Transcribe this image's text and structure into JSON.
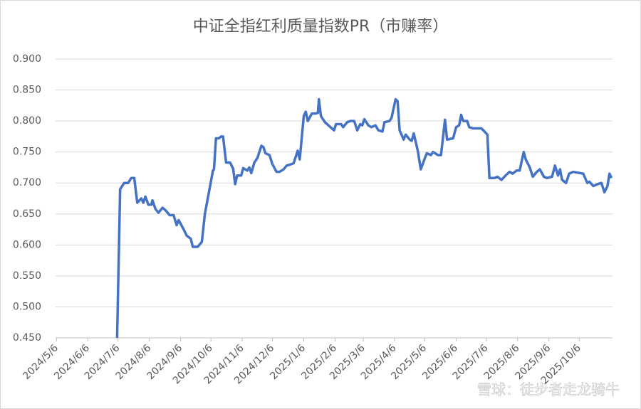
{
  "chart_data": {
    "type": "line",
    "title": "中证全指红利质量指数PR（市赚率）",
    "annotation": "雪球：徒步者走龙骑牛",
    "x": [
      "2024/7/5",
      "2024/7/8",
      "2024/7/12",
      "2024/7/16",
      "2024/7/19",
      "2024/7/22",
      "2024/7/25",
      "2024/7/29",
      "2024/7/31",
      "2024/8/2",
      "2024/8/5",
      "2024/8/8",
      "2024/8/9",
      "2024/8/12",
      "2024/8/15",
      "2024/8/19",
      "2024/8/22",
      "2024/8/26",
      "2024/8/30",
      "2024/9/2",
      "2024/9/4",
      "2024/9/9",
      "2024/9/12",
      "2024/9/16",
      "2024/9/18",
      "2024/9/23",
      "2024/9/27",
      "2024/9/30",
      "2024/10/8",
      "2024/10/9",
      "2024/10/11",
      "2024/10/14",
      "2024/10/16",
      "2024/10/18",
      "2024/10/21",
      "2024/10/25",
      "2024/10/28",
      "2024/10/30",
      "2024/11/1",
      "2024/11/5",
      "2024/11/7",
      "2024/11/11",
      "2024/11/13",
      "2024/11/15",
      "2024/11/18",
      "2024/11/21",
      "2024/11/25",
      "2024/11/27",
      "2024/11/29",
      "2024/12/3",
      "2024/12/6",
      "2024/12/10",
      "2024/12/13",
      "2024/12/17",
      "2024/12/20",
      "2024/12/24",
      "2024/12/27",
      "2024/12/31",
      "2025/1/2",
      "2025/1/6",
      "2025/1/8",
      "2025/1/10",
      "2025/1/14",
      "2025/1/17",
      "2025/1/20",
      "2025/1/21",
      "2025/1/23",
      "2025/1/27",
      "2025/2/5",
      "2025/2/7",
      "2025/2/12",
      "2025/2/14",
      "2025/2/18",
      "2025/2/21",
      "2025/2/25",
      "2025/2/28",
      "2025/3/3",
      "2025/3/5",
      "2025/3/7",
      "2025/3/11",
      "2025/3/14",
      "2025/3/18",
      "2025/3/21",
      "2025/3/25",
      "2025/3/27",
      "2025/4/1",
      "2025/4/3",
      "2025/4/7",
      "2025/4/9",
      "2025/4/11",
      "2025/4/15",
      "2025/4/17",
      "2025/4/21",
      "2025/4/23",
      "2025/4/25",
      "2025/4/29",
      "2025/5/2",
      "2025/5/6",
      "2025/5/8",
      "2025/5/12",
      "2025/5/14",
      "2025/5/19",
      "2025/5/22",
      "2025/5/26",
      "2025/5/28",
      "2025/6/3",
      "2025/6/6",
      "2025/6/9",
      "2025/6/11",
      "2025/6/13",
      "2025/6/17",
      "2025/6/19",
      "2025/6/23",
      "2025/6/27",
      "2025/7/1",
      "2025/7/3",
      "2025/7/7",
      "2025/7/9",
      "2025/7/14",
      "2025/7/17",
      "2025/7/21",
      "2025/7/25",
      "2025/7/29",
      "2025/8/1",
      "2025/8/5",
      "2025/8/8",
      "2025/8/12",
      "2025/8/14",
      "2025/8/18",
      "2025/8/21",
      "2025/8/25",
      "2025/8/28",
      "2025/9/1",
      "2025/9/4",
      "2025/9/9",
      "2025/9/12",
      "2025/9/15",
      "2025/9/17",
      "2025/9/19",
      "2025/9/23",
      "2025/9/26",
      "2025/9/30",
      "2025/10/10",
      "2025/10/14",
      "2025/10/16",
      "2025/10/20",
      "2025/10/24",
      "2025/10/28",
      "2025/10/31",
      "2025/11/3",
      "2025/11/5",
      "2025/11/7"
    ],
    "series": [
      {
        "name": "市赚率",
        "color": "#4472c4",
        "values": [
          0.45,
          0.69,
          0.7,
          0.7,
          0.708,
          0.708,
          0.668,
          0.675,
          0.668,
          0.678,
          0.665,
          0.665,
          0.672,
          0.658,
          0.652,
          0.66,
          0.656,
          0.648,
          0.648,
          0.632,
          0.64,
          0.625,
          0.615,
          0.61,
          0.597,
          0.597,
          0.605,
          0.65,
          0.72,
          0.722,
          0.772,
          0.772,
          0.775,
          0.775,
          0.733,
          0.733,
          0.723,
          0.698,
          0.712,
          0.712,
          0.724,
          0.72,
          0.725,
          0.716,
          0.733,
          0.74,
          0.76,
          0.758,
          0.748,
          0.745,
          0.73,
          0.718,
          0.718,
          0.722,
          0.728,
          0.73,
          0.732,
          0.752,
          0.738,
          0.808,
          0.815,
          0.8,
          0.812,
          0.812,
          0.813,
          0.835,
          0.808,
          0.798,
          0.785,
          0.795,
          0.795,
          0.79,
          0.798,
          0.8,
          0.8,
          0.785,
          0.795,
          0.793,
          0.803,
          0.793,
          0.79,
          0.793,
          0.785,
          0.783,
          0.798,
          0.8,
          0.805,
          0.835,
          0.832,
          0.785,
          0.77,
          0.778,
          0.77,
          0.768,
          0.78,
          0.752,
          0.722,
          0.74,
          0.748,
          0.745,
          0.75,
          0.745,
          0.745,
          0.802,
          0.77,
          0.772,
          0.79,
          0.793,
          0.81,
          0.8,
          0.8,
          0.79,
          0.788,
          0.788,
          0.788,
          0.785,
          0.778,
          0.708,
          0.708,
          0.71,
          0.705,
          0.712,
          0.718,
          0.715,
          0.72,
          0.72,
          0.75,
          0.738,
          0.725,
          0.71,
          0.718,
          0.722,
          0.71,
          0.708,
          0.71,
          0.728,
          0.712,
          0.722,
          0.705,
          0.7,
          0.715,
          0.718,
          0.715,
          0.7,
          0.702,
          0.695,
          0.698,
          0.7,
          0.685,
          0.695,
          0.715,
          0.708
        ]
      }
    ],
    "xlim": [
      "2024/5/5",
      "2025/11/8"
    ],
    "xticks": [
      "2024/5/6",
      "2024/6/6",
      "2024/7/6",
      "2024/8/6",
      "2024/9/6",
      "2024/10/6",
      "2024/11/6",
      "2024/12/6",
      "2025/1/6",
      "2025/2/6",
      "2025/3/6",
      "2025/4/6",
      "2025/5/6",
      "2025/6/6",
      "2025/7/6",
      "2025/8/6",
      "2025/9/6",
      "2025/10/6"
    ],
    "ylim": [
      0.45,
      0.9
    ],
    "yticks": [
      {
        "value": 0.45,
        "label": "0.450"
      },
      {
        "value": 0.5,
        "label": "0.500"
      },
      {
        "value": 0.55,
        "label": "0.550"
      },
      {
        "value": 0.6,
        "label": "0.600"
      },
      {
        "value": 0.65,
        "label": "0.650"
      },
      {
        "value": 0.7,
        "label": "0.700"
      },
      {
        "value": 0.75,
        "label": "0.750"
      },
      {
        "value": 0.8,
        "label": "0.800"
      },
      {
        "value": 0.85,
        "label": "0.850"
      },
      {
        "value": 0.9,
        "label": "0.900"
      }
    ],
    "grid": true
  }
}
